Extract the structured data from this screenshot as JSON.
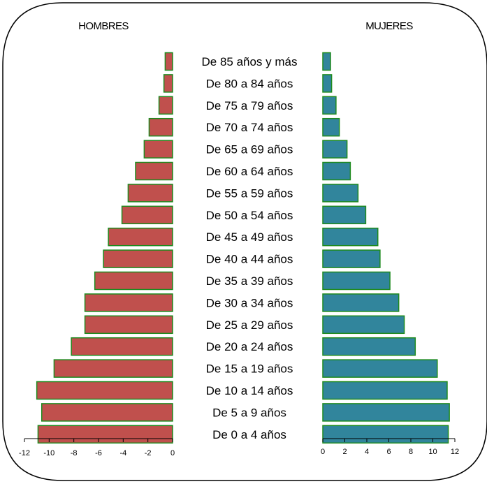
{
  "chart_data": {
    "type": "bar",
    "title": "",
    "categories": [
      "De 85 años y más",
      "De 80 a 84 años",
      "De 75 a 79 años",
      "De 70 a 74 años",
      "De 65 a 69 años",
      "De 60 a 64 años",
      "De 55 a 59 años",
      "De 50 a 54 años",
      "De 45 a 49 años",
      "De 40 a 44 años",
      "De 35 a 39 años",
      "De 30 a 34 años",
      "De 25 a 29 años",
      "De 20 a 24 años",
      "De 15 a 19 años",
      "De 10 a 14 años",
      "De 5 a 9 años",
      "De 0 a 4 años"
    ],
    "series": [
      {
        "name": "HOMBRES",
        "color": "#c0504d",
        "values": [
          -0.6,
          -0.7,
          -1.1,
          -1.9,
          -2.3,
          -3.0,
          -3.6,
          -4.1,
          -5.2,
          -5.6,
          -6.3,
          -7.1,
          -7.1,
          -8.2,
          -9.6,
          -11.0,
          -10.6,
          -10.9
        ]
      },
      {
        "name": "MUJERES",
        "color": "#31859c",
        "values": [
          0.7,
          0.8,
          1.2,
          1.5,
          2.2,
          2.5,
          3.2,
          3.9,
          5.0,
          5.2,
          6.1,
          6.9,
          7.4,
          8.4,
          10.4,
          11.3,
          11.5,
          11.4
        ]
      }
    ],
    "left_axis": {
      "ticks": [
        -12,
        -10,
        -8,
        -6,
        -4,
        -2,
        0
      ],
      "range": [
        -12,
        0
      ]
    },
    "right_axis": {
      "ticks": [
        0,
        2,
        4,
        6,
        8,
        10,
        12
      ],
      "range": [
        0,
        12
      ]
    },
    "bar_border_color": "#1e8a1e",
    "legend": "none",
    "grid": false
  }
}
